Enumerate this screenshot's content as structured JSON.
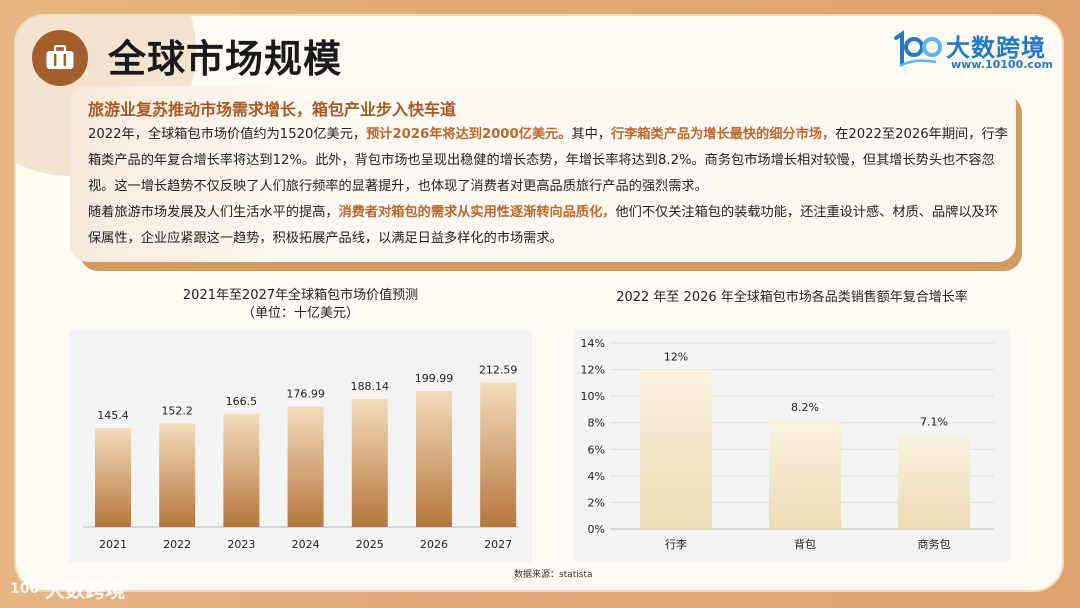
{
  "page": {
    "title": "全球市场规模",
    "title_icon": "suitcase-icon",
    "logo": {
      "mark": "100",
      "name": "大数跨境",
      "url": "www.10100.com"
    },
    "watermark": "大数跨境",
    "source": "数据来源：statista"
  },
  "text_box": {
    "subtitle": "旅游业复苏推动市场需求增长，箱包产业步入快车道",
    "p1_a": "2022年，全球箱包市场价值约为1520亿美元，",
    "p1_b": "预计2026年将达到2000亿美元。",
    "p1_c": "其中，",
    "p1_d": "行李箱类产品为增长最快的细分市场，",
    "p1_e": "在2022至2026年期间，行李箱类产品的年复合增长率将达到12%。此外，背包市场也呈现出稳健的增长态势，年增长率将达到8.2%。商务包市场增长相对较慢，但其增长势头也不容忽视。这一增长趋势不仅反映了人们旅行频率的显著提升，也体现了消费者对更高品质旅行产品的强烈需求。",
    "p2_a": "随着旅游市场发展及人们生活水平的提高，",
    "p2_b": "消费者对箱包的需求从实用性逐渐转向品质化，",
    "p2_c": "他们不仅关注箱包的装载功能，还注重设计感、材质、品牌以及环保属性，企业应紧跟这一趋势，积极拓展产品线，以满足日益多样化的市场需求。"
  },
  "chart_data": [
    {
      "type": "bar",
      "title": "2021年至2027年全球箱包市场价值预测",
      "subtitle": "（单位：十亿美元）",
      "categories": [
        "2021",
        "2022",
        "2023",
        "2024",
        "2025",
        "2026",
        "2027"
      ],
      "values": [
        145.4,
        152.2,
        166.5,
        176.99,
        188.14,
        199.99,
        212.59
      ],
      "data_labels": [
        "145.4",
        "152.2",
        "166.5",
        "176.99",
        "188.14",
        "199.99",
        "212.59"
      ],
      "ylim": [
        0,
        250
      ],
      "grid": false,
      "legend": "none",
      "colors": {
        "bar_top": "#f3dcbc",
        "bar_bottom": "#b4773f"
      }
    },
    {
      "type": "bar",
      "title": "2022 年至 2026 年全球箱包市场各品类销售额年复合增长率",
      "categories": [
        "行李",
        "背包",
        "商务包"
      ],
      "values": [
        12,
        8.2,
        7.1
      ],
      "data_labels": [
        "12%",
        "8.2%",
        "7.1%"
      ],
      "yticks": [
        "0%",
        "2%",
        "4%",
        "6%",
        "8%",
        "10%",
        "12%",
        "14%"
      ],
      "ylim": [
        0,
        14
      ],
      "grid": true,
      "legend": "none",
      "colors": {
        "bar_top": "#f8f1df",
        "bar_bottom": "#ecdcb5"
      }
    }
  ]
}
